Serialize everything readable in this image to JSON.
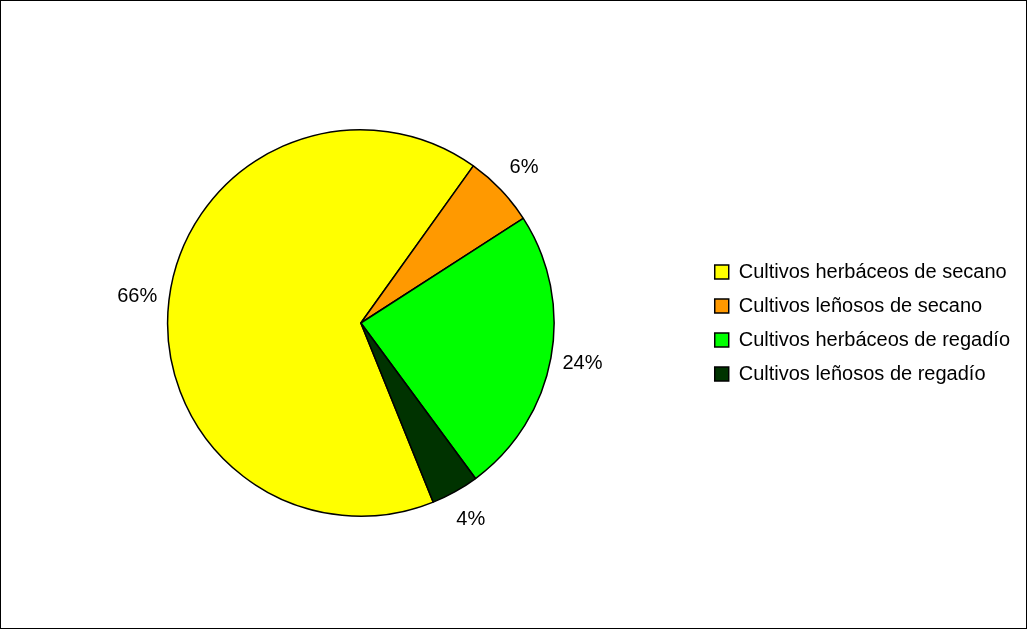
{
  "chart_data": {
    "type": "pie",
    "categories": [
      "Cultivos herbáceos de secano",
      "Cultivos leñosos de secano",
      "Cultivos herbáceos de regadío",
      "Cultivos leñosos de regadío"
    ],
    "values": [
      66,
      6,
      24,
      4
    ],
    "colors": [
      "#ffff00",
      "#ff9900",
      "#00ff00",
      "#003300"
    ],
    "value_labels": [
      "66%",
      "6%",
      "24%",
      "4%"
    ],
    "legend": "right"
  }
}
